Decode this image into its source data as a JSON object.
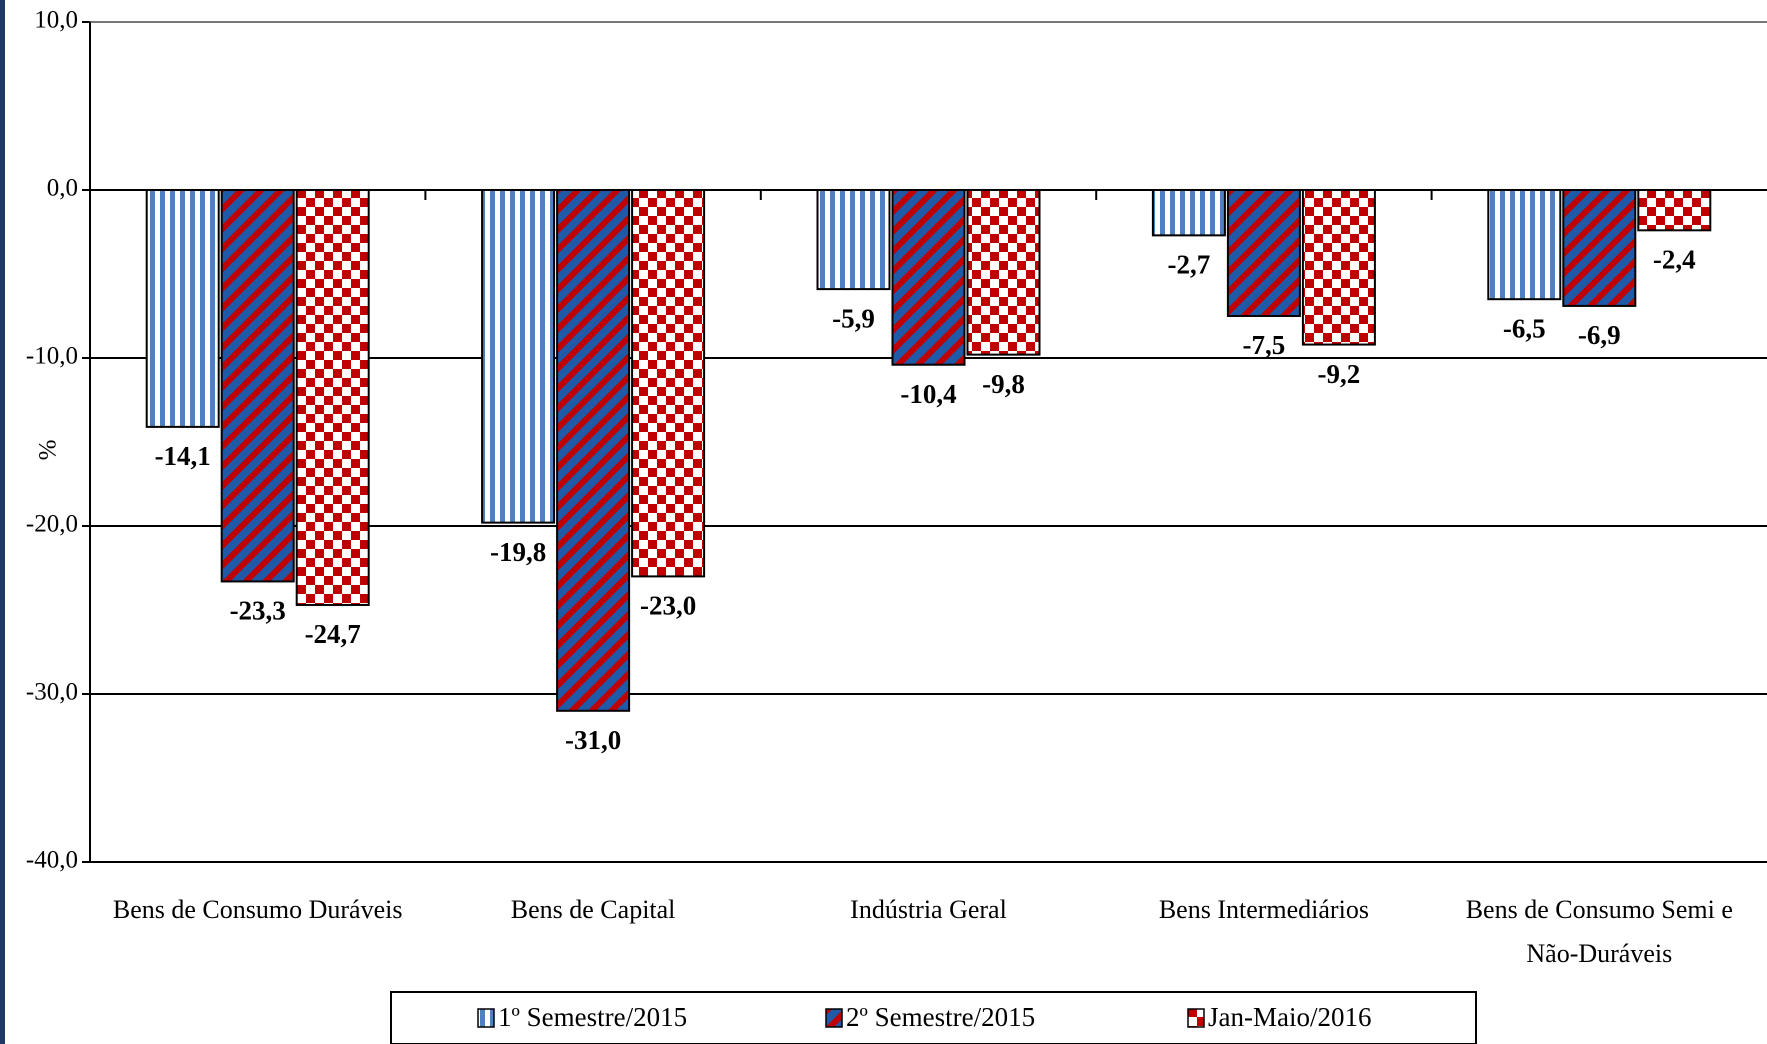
{
  "chart_data": {
    "type": "bar",
    "y_label": "%",
    "categories": [
      "Bens de Consumo Duráveis",
      "Bens de Capital",
      "Indústria Geral",
      "Bens Intermediários",
      "Bens de Consumo Semi e Não-Duráveis"
    ],
    "series": [
      {
        "name": "1º Semestre/2015",
        "color": "#4f81bd",
        "values": [
          -14.1,
          -19.8,
          -5.9,
          -2.7,
          -6.5
        ],
        "value_labels": [
          "-14,1",
          "-19,8",
          "-5,9",
          "-2,7",
          "-6,5"
        ]
      },
      {
        "name": "2º Semestre/2015",
        "color": "#1f5aa8",
        "values": [
          -23.3,
          -31.0,
          -10.4,
          -7.5,
          -6.9
        ],
        "value_labels": [
          "-23,3",
          "-31,0",
          "-10,4",
          "-7,5",
          "-6,9"
        ]
      },
      {
        "name": "Jan-Maio/2016",
        "color": "#c00000",
        "values": [
          -24.7,
          -23.0,
          -9.8,
          -9.2,
          -2.4
        ],
        "value_labels": [
          "-24,7",
          "-23,0",
          "-9,8",
          "-9,2",
          "-2,4"
        ]
      }
    ],
    "ylim": [
      -40,
      10
    ],
    "yticks": [
      {
        "value": -40,
        "label": "-40,0"
      },
      {
        "value": -30,
        "label": "-30,0"
      },
      {
        "value": -20,
        "label": "-20,0"
      },
      {
        "value": -10,
        "label": "-10,0"
      },
      {
        "value": 0,
        "label": "0,0"
      },
      {
        "value": 10,
        "label": "10,0"
      }
    ],
    "grid": true
  }
}
